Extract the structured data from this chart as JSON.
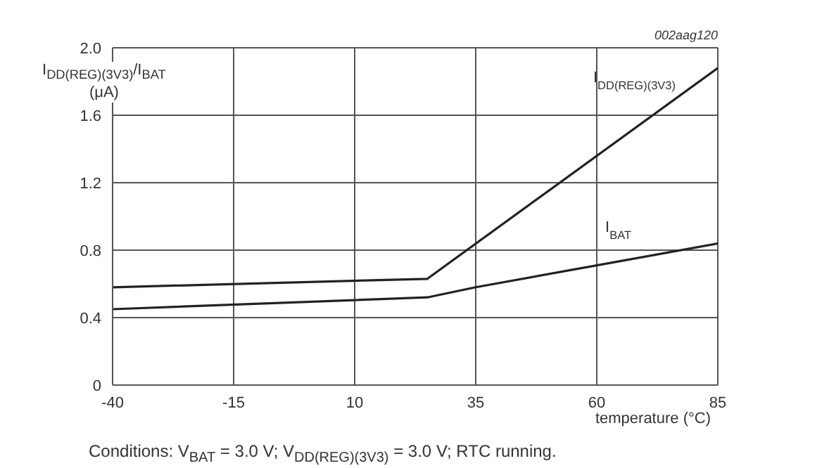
{
  "chart_data": {
    "type": "line",
    "xlabel": "temperature (°C)",
    "ylabel": "I$_{DD(REG)(3V3)}$/I$_{BAT}$ (μA)",
    "annotations": [
      "002aag120",
      "Conditions: V$_{BAT}$ = 3.0 V; V$_{DD(REG)(3V3)}$ = 3.0 V; RTC running."
    ],
    "xlim": [
      -40,
      85
    ],
    "xticks": [
      -40,
      -15,
      10,
      35,
      60,
      85
    ],
    "ylim": [
      0,
      2.0
    ],
    "yticks": [
      0,
      {
        "value": 0.4,
        "label": "0.4"
      },
      {
        "value": 0.8,
        "label": "0.8"
      },
      {
        "value": 1.2,
        "label": "1.2"
      },
      {
        "value": 1.6,
        "label": "1.6"
      },
      {
        "value": 2,
        "label": "2.0"
      }
    ],
    "grid": true,
    "marker": "none",
    "line_style": "solid",
    "series": [
      {
        "name": "I$_{DD(REG)(3V3)}$",
        "color": "#222222",
        "x": [
          -40,
          25,
          85
        ],
        "values": [
          0.58,
          0.63,
          1.88
        ]
      },
      {
        "name": "I$_{BAT}$",
        "color": "#222222",
        "x": [
          -40,
          25,
          35,
          60,
          85
        ],
        "values": [
          0.45,
          0.52,
          0.58,
          0.71,
          0.84
        ]
      }
    ]
  }
}
